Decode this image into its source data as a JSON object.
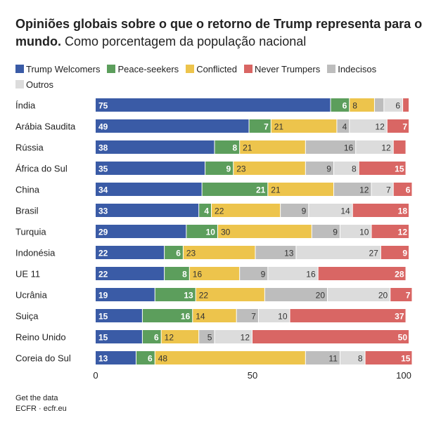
{
  "header": {
    "title": "Opiniões globais sobre o que o retorno de Trump representa para o mundo.",
    "subtitle": "Como porcentagem da população nacional"
  },
  "colors": {
    "trump_welcomers": "#3a5ba6",
    "peace_seekers": "#5c9e5c",
    "conflicted": "#edc44c",
    "never_trumpers": "#d96664",
    "indecisos": "#bdbdbd",
    "outros": "#dcdcdc"
  },
  "chart_data": {
    "type": "bar",
    "orientation": "horizontal",
    "stacked": true,
    "categories": [
      "Índia",
      "Arábia Saudita",
      "Rússia",
      "África do Sul",
      "China",
      "Brasil",
      "Turquia",
      "Indonésia",
      "UE 11",
      "Ucrânia",
      "Suiça",
      "Reino Unido",
      "Coreia do Sul"
    ],
    "series": [
      {
        "name": "Trump Welcomers",
        "color": "#3a5ba6",
        "values": [
          75,
          49,
          38,
          35,
          34,
          33,
          29,
          22,
          22,
          19,
          15,
          15,
          13
        ]
      },
      {
        "name": "Peace-seekers",
        "color": "#5c9e5c",
        "values": [
          6,
          7,
          8,
          9,
          21,
          4,
          10,
          6,
          8,
          13,
          16,
          6,
          6
        ]
      },
      {
        "name": "Conflicted",
        "color": "#edc44c",
        "values": [
          8,
          21,
          21,
          23,
          21,
          22,
          30,
          23,
          16,
          22,
          14,
          12,
          48
        ]
      },
      {
        "name": "Indecisos",
        "color": "#bdbdbd",
        "values": [
          3,
          4,
          16,
          9,
          12,
          9,
          9,
          13,
          9,
          20,
          7,
          5,
          11
        ]
      },
      {
        "name": "Outros",
        "color": "#dcdcdc",
        "values": [
          6,
          12,
          12,
          8,
          7,
          14,
          10,
          27,
          16,
          20,
          10,
          12,
          8
        ]
      },
      {
        "name": "Never Trumpers",
        "color": "#d96664",
        "values": [
          2,
          7,
          4,
          15,
          6,
          18,
          12,
          9,
          28,
          7,
          37,
          50,
          15
        ]
      }
    ],
    "labels_shown": [
      [
        true,
        true,
        true,
        false,
        true,
        false
      ],
      [
        true,
        true,
        true,
        true,
        true,
        true
      ],
      [
        true,
        true,
        true,
        true,
        true,
        false
      ],
      [
        true,
        true,
        true,
        true,
        true,
        true
      ],
      [
        true,
        true,
        true,
        true,
        true,
        true
      ],
      [
        true,
        true,
        true,
        true,
        true,
        true
      ],
      [
        true,
        true,
        true,
        true,
        true,
        true
      ],
      [
        true,
        true,
        true,
        true,
        true,
        true
      ],
      [
        true,
        true,
        true,
        true,
        true,
        true
      ],
      [
        true,
        true,
        true,
        true,
        true,
        true
      ],
      [
        true,
        true,
        true,
        true,
        true,
        true
      ],
      [
        true,
        true,
        true,
        true,
        true,
        true
      ],
      [
        true,
        true,
        true,
        true,
        true,
        true
      ]
    ],
    "legend": {
      "position": "top-left",
      "order": [
        "Trump Welcomers",
        "Peace-seekers",
        "Conflicted",
        "Never Trumpers",
        "Indecisos",
        "Outros"
      ]
    },
    "xlim": [
      0,
      100
    ],
    "xticks": [
      0,
      50,
      100
    ],
    "grid": false
  },
  "footer": {
    "line1": "Get the data",
    "line2": "ECFR · ecfr.eu"
  }
}
